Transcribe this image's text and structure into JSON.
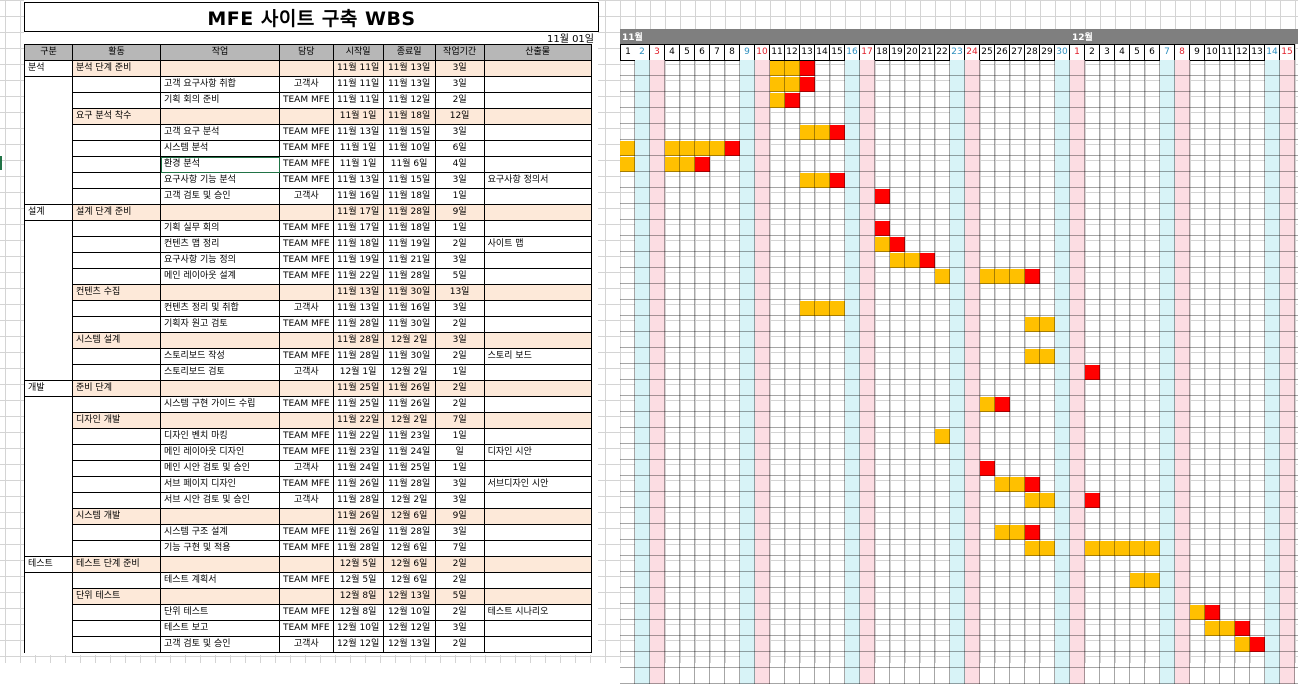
{
  "title": "MFE 사이트 구축 WBS",
  "date": "11월 01일",
  "headers": [
    "구분",
    "활동",
    "작업",
    "담당",
    "시작일",
    "종료일",
    "작업기간",
    "산출물"
  ],
  "rows": [
    {
      "g": "분석",
      "a": "분석 단계 준비",
      "t": "",
      "o": "",
      "s": "11월 11일",
      "e": "11월 13일",
      "d": "3일",
      "p": "",
      "type": "act",
      "bar": [
        10,
        12
      ]
    },
    {
      "g": "",
      "a": "",
      "t": "고객 요구사항 취합",
      "o": "고객사",
      "s": "11월 11일",
      "e": "11월 13일",
      "d": "3일",
      "p": "",
      "type": "task",
      "bar": [
        10,
        12
      ]
    },
    {
      "g": "",
      "a": "",
      "t": "기획 회의 준비",
      "o": "TEAM MFE",
      "s": "11월 11일",
      "e": "11월 12일",
      "d": "2일",
      "p": "",
      "type": "task",
      "bar": [
        10,
        11
      ]
    },
    {
      "g": "",
      "a": "요구 분석 착수",
      "t": "",
      "o": "",
      "s": "11월 1일",
      "e": "11월 18일",
      "d": "12일",
      "p": "",
      "type": "act",
      "bar": null
    },
    {
      "g": "",
      "a": "",
      "t": "고객 요구 분석",
      "o": "TEAM MFE",
      "s": "11월 13일",
      "e": "11월 15일",
      "d": "3일",
      "p": "",
      "type": "task",
      "bar": [
        12,
        14
      ]
    },
    {
      "g": "",
      "a": "",
      "t": "시스템 분석",
      "o": "TEAM MFE",
      "s": "11월 1일",
      "e": "11월 10일",
      "d": "6일",
      "p": "",
      "type": "task",
      "bar": [
        0,
        7
      ],
      "gap": [
        1,
        2
      ]
    },
    {
      "g": "",
      "a": "",
      "t": "환경 분석",
      "o": "TEAM MFE",
      "s": "11월 1일",
      "e": "11월 6일",
      "d": "4일",
      "p": "",
      "type": "task",
      "bar": [
        0,
        5
      ],
      "gap": [
        1,
        2
      ]
    },
    {
      "g": "",
      "a": "",
      "t": "요구사항 기능 분석",
      "o": "TEAM MFE",
      "s": "11월 13일",
      "e": "11월 15일",
      "d": "3일",
      "p": "요구사항 정의서",
      "type": "task",
      "bar": [
        12,
        14
      ]
    },
    {
      "g": "",
      "a": "",
      "t": "고객 검토 및 승인",
      "o": "고객사",
      "s": "11월 16일",
      "e": "11월 18일",
      "d": "1일",
      "p": "",
      "type": "task",
      "bar": [
        17,
        17
      ]
    },
    {
      "g": "설계",
      "a": "설계 단계 준비",
      "t": "",
      "o": "",
      "s": "11월 17일",
      "e": "11월 28일",
      "d": "9일",
      "p": "",
      "type": "act",
      "bar": null
    },
    {
      "g": "",
      "a": "",
      "t": "기획 실무 회의",
      "o": "TEAM MFE",
      "s": "11월 17일",
      "e": "11월 18일",
      "d": "1일",
      "p": "",
      "type": "task",
      "bar": [
        17,
        17
      ]
    },
    {
      "g": "",
      "a": "",
      "t": "컨텐츠 맵 정리",
      "o": "TEAM MFE",
      "s": "11월 18일",
      "e": "11월 19일",
      "d": "2일",
      "p": "사이트 맵",
      "type": "task",
      "bar": [
        17,
        18
      ]
    },
    {
      "g": "",
      "a": "",
      "t": "요구사항 기능 정의",
      "o": "TEAM MFE",
      "s": "11월 19일",
      "e": "11월 21일",
      "d": "3일",
      "p": "",
      "type": "task",
      "bar": [
        18,
        20
      ]
    },
    {
      "g": "",
      "a": "",
      "t": "메인 레이아웃 설계",
      "o": "TEAM MFE",
      "s": "11월 22일",
      "e": "11월 28일",
      "d": "5일",
      "p": "",
      "type": "task",
      "bar": [
        21,
        27
      ],
      "gap": [
        22,
        23
      ]
    },
    {
      "g": "",
      "a": "컨텐츠 수집",
      "t": "",
      "o": "",
      "s": "11월 13일",
      "e": "11월 30일",
      "d": "13일",
      "p": "",
      "type": "act",
      "bar": null
    },
    {
      "g": "",
      "a": "",
      "t": "컨텐츠 정리 및 취합",
      "o": "고객사",
      "s": "11월 13일",
      "e": "11월 16일",
      "d": "3일",
      "p": "",
      "type": "task",
      "bar": [
        12,
        14
      ],
      "noend": true
    },
    {
      "g": "",
      "a": "",
      "t": "기획자 원고 검토",
      "o": "TEAM MFE",
      "s": "11월 28일",
      "e": "11월 30일",
      "d": "2일",
      "p": "",
      "type": "task",
      "bar": [
        27,
        28
      ],
      "noend": true
    },
    {
      "g": "",
      "a": "시스템 설계",
      "t": "",
      "o": "",
      "s": "11월 28일",
      "e": "12월 2일",
      "d": "3일",
      "p": "",
      "type": "act",
      "bar": null
    },
    {
      "g": "",
      "a": "",
      "t": "스토리보드 작성",
      "o": "TEAM MFE",
      "s": "11월 28일",
      "e": "11월 30일",
      "d": "2일",
      "p": "스토리 보드",
      "type": "task",
      "bar": [
        27,
        28
      ],
      "noend": true
    },
    {
      "g": "",
      "a": "",
      "t": "스토리보드 검토",
      "o": "고객사",
      "s": "12월 1일",
      "e": "12월 2일",
      "d": "1일",
      "p": "",
      "type": "task",
      "bar": [
        31,
        31
      ]
    },
    {
      "g": "개발",
      "a": "준비 단계",
      "t": "",
      "o": "",
      "s": "11월 25일",
      "e": "11월 26일",
      "d": "2일",
      "p": "",
      "type": "act",
      "bar": null
    },
    {
      "g": "",
      "a": "",
      "t": "시스템 구현 가이드 수립",
      "o": "TEAM MFE",
      "s": "11월 25일",
      "e": "11월 26일",
      "d": "2일",
      "p": "",
      "type": "task",
      "bar": [
        24,
        25
      ]
    },
    {
      "g": "",
      "a": "디자인 개발",
      "t": "",
      "o": "",
      "s": "11월 22일",
      "e": "12월 2일",
      "d": "7일",
      "p": "",
      "type": "act",
      "bar": null
    },
    {
      "g": "",
      "a": "",
      "t": "디자인 벤치 마킹",
      "o": "TEAM MFE",
      "s": "11월 22일",
      "e": "11월 23일",
      "d": "1일",
      "p": "",
      "type": "task",
      "bar": [
        21,
        21
      ],
      "noend": true
    },
    {
      "g": "",
      "a": "",
      "t": "메인 레이아웃 디자인",
      "o": "TEAM MFE",
      "s": "11월 23일",
      "e": "11월 24일",
      "d": "일",
      "p": "디자인 시안",
      "type": "task",
      "bar": null
    },
    {
      "g": "",
      "a": "",
      "t": "메인 시안 검토 및 승인",
      "o": "고객사",
      "s": "11월 24일",
      "e": "11월 25일",
      "d": "1일",
      "p": "",
      "type": "task",
      "bar": [
        24,
        24
      ]
    },
    {
      "g": "",
      "a": "",
      "t": "서브 페이지 디자인",
      "o": "TEAM MFE",
      "s": "11월 26일",
      "e": "11월 28일",
      "d": "3일",
      "p": "서브디자인 시안",
      "type": "task",
      "bar": [
        25,
        27
      ]
    },
    {
      "g": "",
      "a": "",
      "t": "서브 시안 검토 및 승인",
      "o": "고객사",
      "s": "11월 28일",
      "e": "12월 2일",
      "d": "3일",
      "p": "",
      "type": "task",
      "bar": [
        27,
        31
      ],
      "gap": [
        29,
        30
      ]
    },
    {
      "g": "",
      "a": "시스템 개발",
      "t": "",
      "o": "",
      "s": "11월 26일",
      "e": "12월 6일",
      "d": "9일",
      "p": "",
      "type": "act",
      "bar": null
    },
    {
      "g": "",
      "a": "",
      "t": "시스템 구조 설계",
      "o": "TEAM MFE",
      "s": "11월 26일",
      "e": "11월 28일",
      "d": "3일",
      "p": "",
      "type": "task",
      "bar": [
        25,
        27
      ]
    },
    {
      "g": "",
      "a": "",
      "t": "기능 구현 및 적용",
      "o": "TEAM MFE",
      "s": "11월 28일",
      "e": "12월 6일",
      "d": "7일",
      "p": "",
      "type": "task",
      "bar": [
        27,
        35
      ],
      "gap": [
        29,
        30
      ],
      "noend": true
    },
    {
      "g": "테스트",
      "a": "테스트 단계 준비",
      "t": "",
      "o": "",
      "s": "12월 5일",
      "e": "12월 6일",
      "d": "2일",
      "p": "",
      "type": "act",
      "bar": null
    },
    {
      "g": "",
      "a": "",
      "t": "테스트 계획서",
      "o": "TEAM MFE",
      "s": "12월 5일",
      "e": "12월 6일",
      "d": "2일",
      "p": "",
      "type": "task",
      "bar": [
        34,
        35
      ],
      "noend": true
    },
    {
      "g": "",
      "a": "단위 테스트",
      "t": "",
      "o": "",
      "s": "12월 8일",
      "e": "12월 13일",
      "d": "5일",
      "p": "",
      "type": "act",
      "bar": null
    },
    {
      "g": "",
      "a": "",
      "t": "단위 테스트",
      "o": "TEAM MFE",
      "s": "12월 8일",
      "e": "12월 10일",
      "d": "2일",
      "p": "테스트 시나리오",
      "type": "task",
      "bar": [
        38,
        39
      ]
    },
    {
      "g": "",
      "a": "",
      "t": "테스트 보고",
      "o": "TEAM MFE",
      "s": "12월 10일",
      "e": "12월 12일",
      "d": "3일",
      "p": "",
      "type": "task",
      "bar": [
        39,
        41
      ]
    },
    {
      "g": "",
      "a": "",
      "t": "고객 검토 및 승인",
      "o": "고객사",
      "s": "12월 12일",
      "e": "12월 13일",
      "d": "2일",
      "p": "",
      "type": "task",
      "bar": [
        41,
        42
      ]
    }
  ],
  "gantt": {
    "months": [
      {
        "label": "11월",
        "start": 0
      },
      {
        "label": "12월",
        "start": 30
      }
    ],
    "days": [
      "1",
      "2",
      "3",
      "4",
      "5",
      "6",
      "7",
      "8",
      "9",
      "10",
      "11",
      "12",
      "13",
      "14",
      "15",
      "16",
      "17",
      "18",
      "19",
      "20",
      "21",
      "22",
      "23",
      "24",
      "25",
      "26",
      "27",
      "28",
      "29",
      "30",
      "1",
      "2",
      "3",
      "4",
      "5",
      "6",
      "7",
      "8",
      "9",
      "10",
      "11",
      "12",
      "13",
      "14",
      "15"
    ],
    "sat": [
      1,
      8,
      15,
      22,
      29,
      36,
      43
    ],
    "sun": [
      2,
      9,
      16,
      23,
      30,
      37,
      44
    ],
    "colors": {
      "bar": "#ffc000",
      "end": "#ff0000",
      "sat": "#d8f3f7",
      "sun": "#fcdde3"
    }
  }
}
